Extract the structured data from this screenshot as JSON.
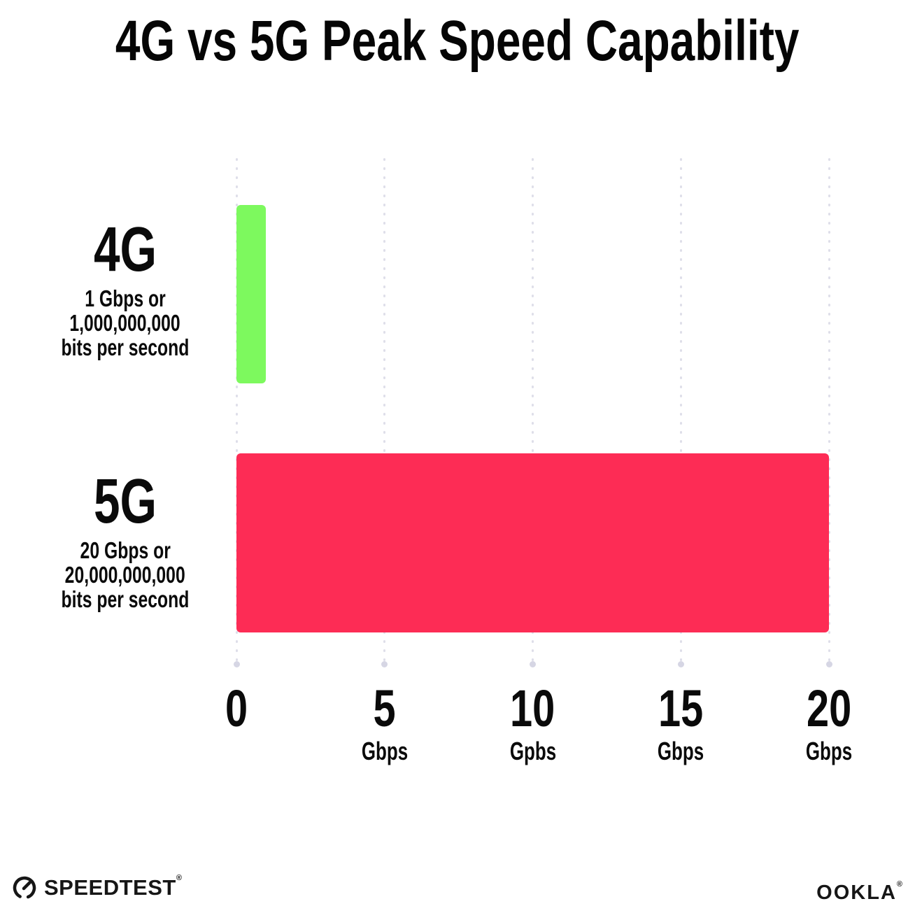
{
  "title": "4G vs 5G Peak Speed Capability",
  "chart_data": {
    "type": "bar",
    "orientation": "horizontal",
    "title": "4G vs 5G Peak Speed Capability",
    "categories": [
      "4G",
      "5G"
    ],
    "values": [
      1,
      20
    ],
    "unit": "Gbps",
    "xlim": [
      0,
      20
    ],
    "grid": "vertical-dotted",
    "bar_colors": [
      "#7df95e",
      "#fd2c55"
    ],
    "rows": [
      {
        "label": "4G",
        "value": 1,
        "color": "#7df95e",
        "sublabel_lines": [
          "1 Gbps or",
          "1,000,000,000",
          "bits per second"
        ]
      },
      {
        "label": "5G",
        "value": 20,
        "color": "#fd2c55",
        "sublabel_lines": [
          "20 Gbps or",
          "20,000,000,000",
          "bits per second"
        ]
      }
    ],
    "x_ticks": [
      {
        "label": "0",
        "unit": ""
      },
      {
        "label": "5",
        "unit": "Gbps"
      },
      {
        "label": "10",
        "unit": "Gpbs"
      },
      {
        "label": "15",
        "unit": "Gbps"
      },
      {
        "label": "20",
        "unit": "Gbps"
      }
    ]
  },
  "footer": {
    "speedtest_label": "SPEEDTEST",
    "speedtest_mark": "®",
    "speedtest_icon": "gauge-icon",
    "ookla_label": "OOKLA",
    "ookla_mark": "®"
  },
  "colors": {
    "background": "#ffffff",
    "text": "#0a0a0a",
    "bar_4g": "#7df95e",
    "bar_5g": "#fd2c55",
    "gridline": "#dedee9",
    "gridline_end_dot": "#d6d6e4"
  }
}
